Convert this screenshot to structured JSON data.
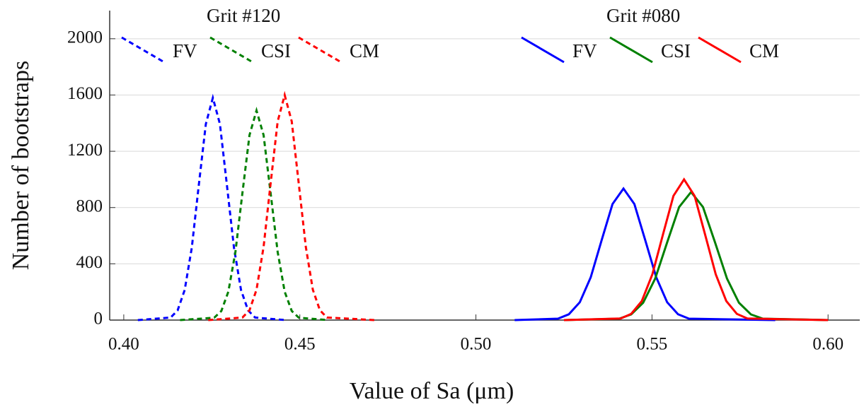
{
  "chart_data": {
    "type": "line",
    "xlabel": "Value of Sa (μm)",
    "ylabel": "Number of bootstraps",
    "xlim": [
      0.396,
      0.609
    ],
    "ylim": [
      0,
      2200
    ],
    "xticks": [
      {
        "value": 0.4,
        "label": "0.40"
      },
      0.45,
      {
        "value": 0.5,
        "label": "0.50"
      },
      0.55,
      {
        "value": 0.6,
        "label": "0.60"
      }
    ],
    "yticks": [
      0,
      400,
      800,
      1200,
      1600,
      2000
    ],
    "grid": true,
    "series": [
      {
        "name": "FV",
        "group": "Grit #120",
        "color": "#0000ff",
        "dashed": true,
        "x": [
          0.404,
          0.4133,
          0.4153,
          0.4173,
          0.4193,
          0.4213,
          0.4233,
          0.4253,
          0.4273,
          0.4293,
          0.4313,
          0.4333,
          0.4353,
          0.4373,
          0.446
        ],
        "values": [
          0,
          18,
          69,
          214,
          513,
          958,
          1394,
          1580,
          1394,
          958,
          513,
          214,
          69,
          18,
          0
        ]
      },
      {
        "name": "CSI",
        "group": "Grit #120",
        "color": "#008000",
        "dashed": true,
        "x": [
          0.416,
          0.4257,
          0.4277,
          0.4297,
          0.4317,
          0.4337,
          0.4357,
          0.4377,
          0.4397,
          0.4417,
          0.4437,
          0.4457,
          0.4477,
          0.4497,
          0.458
        ],
        "values": [
          0,
          17,
          65,
          202,
          484,
          904,
          1315,
          1490,
          1315,
          904,
          484,
          202,
          65,
          17,
          0
        ]
      },
      {
        "name": "CM",
        "group": "Grit #120",
        "color": "#ff0000",
        "dashed": true,
        "x": [
          0.424,
          0.4337,
          0.4357,
          0.4377,
          0.4397,
          0.4417,
          0.4437,
          0.4457,
          0.4477,
          0.4497,
          0.4517,
          0.4537,
          0.4557,
          0.4577,
          0.4713
        ],
        "values": [
          0,
          18,
          70,
          216,
          520,
          970,
          1412,
          1600,
          1412,
          970,
          520,
          216,
          70,
          18,
          0
        ]
      },
      {
        "name": "FV",
        "group": "Grit #080",
        "color": "#0000ff",
        "dashed": false,
        "x": [
          0.511,
          0.5233,
          0.5264,
          0.5295,
          0.5326,
          0.5357,
          0.5388,
          0.5419,
          0.545,
          0.5481,
          0.5512,
          0.5543,
          0.5574,
          0.5605,
          0.585
        ],
        "values": [
          0,
          10,
          41,
          127,
          304,
          567,
          825,
          935,
          825,
          567,
          304,
          127,
          41,
          10,
          0
        ]
      },
      {
        "name": "CSI",
        "group": "Grit #080",
        "color": "#008000",
        "dashed": false,
        "x": [
          0.525,
          0.5407,
          0.5441,
          0.5475,
          0.5509,
          0.5543,
          0.5577,
          0.5611,
          0.5645,
          0.5679,
          0.5713,
          0.5747,
          0.5781,
          0.5815,
          0.6
        ],
        "values": [
          0,
          10,
          40,
          123,
          295,
          552,
          803,
          910,
          803,
          552,
          295,
          123,
          40,
          10,
          0
        ]
      },
      {
        "name": "CM",
        "group": "Grit #080",
        "color": "#ff0000",
        "dashed": false,
        "x": [
          0.525,
          0.5411,
          0.5441,
          0.5471,
          0.5501,
          0.5531,
          0.5561,
          0.5591,
          0.5621,
          0.5651,
          0.5681,
          0.5711,
          0.5741,
          0.5771,
          0.6
        ],
        "values": [
          0,
          11,
          44,
          135,
          325,
          607,
          883,
          1000,
          883,
          607,
          325,
          135,
          44,
          11,
          0
        ]
      }
    ]
  }
}
